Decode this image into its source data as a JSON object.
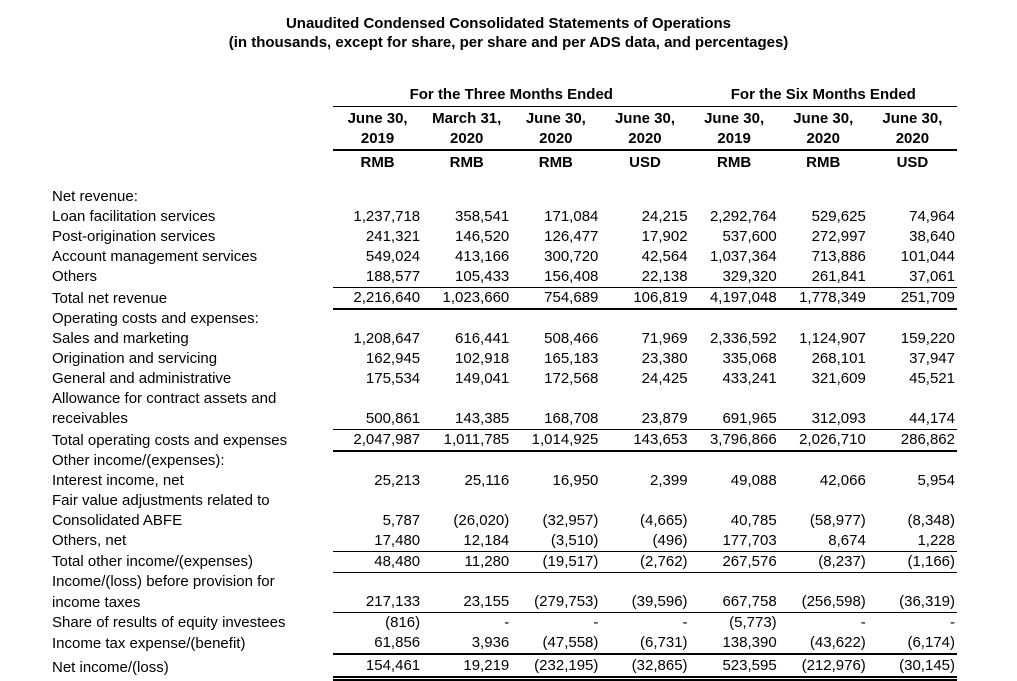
{
  "title": "Unaudited Condensed Consolidated Statements of Operations",
  "subtitle": "(in thousands, except for share, per share and per ADS data, and percentages)",
  "table": {
    "groups": [
      {
        "label": "For the Three Months Ended",
        "span": 4
      },
      {
        "label": "For the Six Months Ended",
        "span": 3
      }
    ],
    "columns": [
      {
        "date": "June 30,",
        "year": "2019",
        "currency": "RMB"
      },
      {
        "date": "March 31,",
        "year": "2020",
        "currency": "RMB"
      },
      {
        "date": "June 30,",
        "year": "2020",
        "currency": "RMB"
      },
      {
        "date": "June 30,",
        "year": "2020",
        "currency": "USD"
      },
      {
        "date": "June 30,",
        "year": "2019",
        "currency": "RMB"
      },
      {
        "date": "June 30,",
        "year": "2020",
        "currency": "RMB"
      },
      {
        "date": "June 30,",
        "year": "2020",
        "currency": "USD"
      }
    ],
    "rows": [
      {
        "label": "Net revenue:",
        "type": "section"
      },
      {
        "label": "Loan facilitation services",
        "type": "item",
        "values": [
          "1,237,718",
          "358,541",
          "171,084",
          "24,215",
          "2,292,764",
          "529,625",
          "74,964"
        ]
      },
      {
        "label": "Post-origination services",
        "type": "item",
        "values": [
          "241,321",
          "146,520",
          "126,477",
          "17,902",
          "537,600",
          "272,997",
          "38,640"
        ]
      },
      {
        "label": "Account management services",
        "type": "item",
        "values": [
          "549,024",
          "413,166",
          "300,720",
          "42,564",
          "1,037,364",
          "713,886",
          "101,044"
        ]
      },
      {
        "label": "Others",
        "type": "item",
        "rule": "thin",
        "values": [
          "188,577",
          "105,433",
          "156,408",
          "22,138",
          "329,320",
          "261,841",
          "37,061"
        ]
      },
      {
        "label": "Total net revenue",
        "type": "total",
        "rule": "thick",
        "values": [
          "2,216,640",
          "1,023,660",
          "754,689",
          "106,819",
          "4,197,048",
          "1,778,349",
          "251,709"
        ]
      },
      {
        "label": "Operating costs and expenses:",
        "type": "section"
      },
      {
        "label": "Sales and marketing",
        "type": "item",
        "values": [
          "1,208,647",
          "616,441",
          "508,466",
          "71,969",
          "2,336,592",
          "1,124,907",
          "159,220"
        ]
      },
      {
        "label": "Origination and servicing",
        "type": "item",
        "values": [
          "162,945",
          "102,918",
          "165,183",
          "23,380",
          "335,068",
          "268,101",
          "37,947"
        ]
      },
      {
        "label": "General and administrative",
        "type": "item",
        "values": [
          "175,534",
          "149,041",
          "172,568",
          "24,425",
          "433,241",
          "321,609",
          "45,521"
        ]
      },
      {
        "label": "Allowance for contract assets and",
        "type": "wrap"
      },
      {
        "label": "receivables",
        "type": "item",
        "rule": "thin",
        "values": [
          "500,861",
          "143,385",
          "168,708",
          "23,879",
          "691,965",
          "312,093",
          "44,174"
        ]
      },
      {
        "label": "Total operating costs and expenses",
        "type": "total",
        "rule": "thick",
        "values": [
          "2,047,987",
          "1,011,785",
          "1,014,925",
          "143,653",
          "3,796,866",
          "2,026,710",
          "286,862"
        ]
      },
      {
        "label": "Other income/(expenses):",
        "type": "section"
      },
      {
        "label": "Interest income, net",
        "type": "item",
        "values": [
          "25,213",
          "25,116",
          "16,950",
          "2,399",
          "49,088",
          "42,066",
          "5,954"
        ]
      },
      {
        "label": "Fair value adjustments related to",
        "type": "wrap"
      },
      {
        "label": "Consolidated ABFE",
        "type": "item",
        "values": [
          "5,787",
          "(26,020)",
          "(32,957)",
          "(4,665)",
          "40,785",
          "(58,977)",
          "(8,348)"
        ]
      },
      {
        "label": "Others, net",
        "type": "item",
        "rule": "thin",
        "values": [
          "17,480",
          "12,184",
          "(3,510)",
          "(496)",
          "177,703",
          "8,674",
          "1,228"
        ]
      },
      {
        "label": "Total other income/(expenses)",
        "type": "total",
        "rule": "thin",
        "values": [
          "48,480",
          "11,280",
          "(19,517)",
          "(2,762)",
          "267,576",
          "(8,237)",
          "(1,166)"
        ]
      },
      {
        "label": "Income/(loss) before provision for",
        "type": "wrap"
      },
      {
        "label": "income taxes",
        "type": "item",
        "rule": "thin",
        "values": [
          "217,133",
          "23,155",
          "(279,753)",
          "(39,596)",
          "667,758",
          "(256,598)",
          "(36,319)"
        ]
      },
      {
        "label": "Share of results of equity investees",
        "type": "item",
        "values": [
          "(816)",
          "-",
          "-",
          "-",
          "(5,773)",
          "-",
          "-"
        ]
      },
      {
        "label": "Income tax expense/(benefit)",
        "type": "item",
        "rule": "thick",
        "values": [
          "61,856",
          "3,936",
          "(47,558)",
          "(6,731)",
          "138,390",
          "(43,622)",
          "(6,174)"
        ]
      },
      {
        "label": "Net income/(loss)",
        "type": "total",
        "rule": "double",
        "values": [
          "154,461",
          "19,219",
          "(232,195)",
          "(32,865)",
          "523,595",
          "(212,976)",
          "(30,145)"
        ]
      }
    ]
  }
}
